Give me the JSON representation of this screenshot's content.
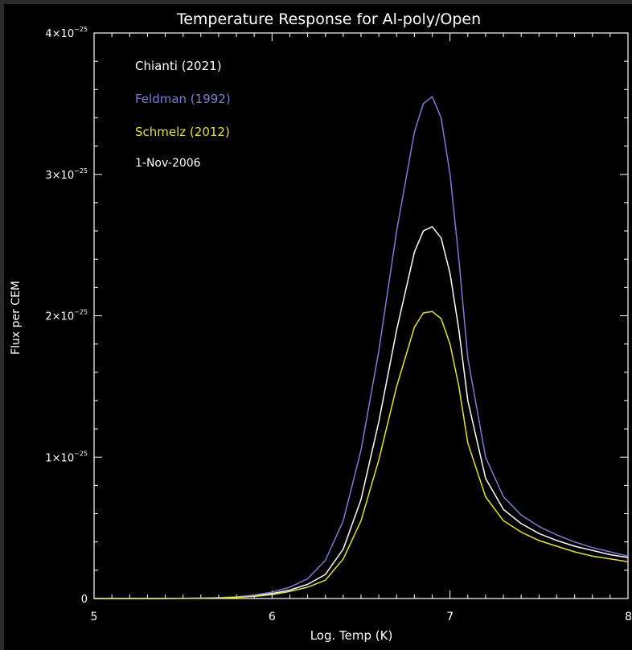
{
  "chart_data": {
    "type": "line",
    "title": "Temperature Response for Al-poly/Open",
    "xlabel": "Log. Temp (K)",
    "ylabel": "Flux per CEM",
    "xlim": [
      5,
      8
    ],
    "ylim": [
      0,
      4e-25
    ],
    "x_ticks": [
      {
        "value": 5,
        "label": "5"
      },
      {
        "value": 6,
        "label": "6"
      },
      {
        "value": 7,
        "label": "7"
      },
      {
        "value": 8,
        "label": "8"
      }
    ],
    "y_ticks": [
      {
        "value": 0,
        "label": "0",
        "exp": ""
      },
      {
        "value": 1e-25,
        "label": "1×10",
        "exp": "−25"
      },
      {
        "value": 2e-25,
        "label": "2×10",
        "exp": "−25"
      },
      {
        "value": 3e-25,
        "label": "3×10",
        "exp": "−25"
      },
      {
        "value": 4e-25,
        "label": "4×10",
        "exp": "−25"
      }
    ],
    "annotation": "1-Nov-2006",
    "legend_placement": "top-left",
    "background": "#000000",
    "axis_color": "#ffffff",
    "series": [
      {
        "name": "Chianti (2021)",
        "color": "#ffffff",
        "x": [
          5.0,
          5.1,
          5.2,
          5.3,
          5.4,
          5.5,
          5.6,
          5.7,
          5.8,
          5.9,
          6.0,
          6.1,
          6.2,
          6.3,
          6.4,
          6.5,
          6.6,
          6.7,
          6.8,
          6.85,
          6.9,
          6.95,
          7.0,
          7.05,
          7.1,
          7.2,
          7.3,
          7.4,
          7.5,
          7.6,
          7.7,
          7.8,
          7.9,
          8.0
        ],
        "values": [
          0,
          0,
          0,
          0,
          5e-29,
          1e-28,
          2e-28,
          5e-28,
          1e-27,
          2e-27,
          3.5e-27,
          6e-27,
          1e-26,
          1.7e-26,
          3.5e-26,
          7e-26,
          1.25e-25,
          1.9e-25,
          2.45e-25,
          2.6e-25,
          2.63e-25,
          2.55e-25,
          2.3e-25,
          1.9e-25,
          1.4e-25,
          8.5e-26,
          6.3e-26,
          5.3e-26,
          4.6e-26,
          4.1e-26,
          3.7e-26,
          3.4e-26,
          3.1e-26,
          2.9e-26
        ]
      },
      {
        "name": "Feldman (1992)",
        "color": "#7b7bdc",
        "x": [
          5.0,
          5.1,
          5.2,
          5.3,
          5.4,
          5.5,
          5.6,
          5.7,
          5.8,
          5.9,
          6.0,
          6.1,
          6.2,
          6.3,
          6.4,
          6.5,
          6.6,
          6.7,
          6.8,
          6.85,
          6.9,
          6.95,
          7.0,
          7.05,
          7.1,
          7.2,
          7.3,
          7.4,
          7.5,
          7.6,
          7.7,
          7.8,
          7.9,
          8.0
        ],
        "values": [
          0,
          0,
          0,
          0,
          5e-29,
          1e-28,
          3e-28,
          6e-28,
          1.2e-27,
          2.5e-27,
          4.5e-27,
          8e-27,
          1.4e-26,
          2.7e-26,
          5.5e-26,
          1.05e-25,
          1.75e-25,
          2.6e-25,
          3.3e-25,
          3.5e-25,
          3.55e-25,
          3.4e-25,
          3e-25,
          2.4e-25,
          1.7e-25,
          1e-25,
          7.2e-26,
          5.9e-26,
          5.1e-26,
          4.5e-26,
          4e-26,
          3.6e-26,
          3.3e-26,
          3e-26
        ]
      },
      {
        "name": "Schmelz (2012)",
        "color": "#e6e619",
        "x": [
          5.0,
          5.1,
          5.2,
          5.3,
          5.4,
          5.5,
          5.6,
          5.7,
          5.8,
          5.9,
          6.0,
          6.1,
          6.2,
          6.3,
          6.4,
          6.5,
          6.6,
          6.7,
          6.8,
          6.85,
          6.9,
          6.95,
          7.0,
          7.05,
          7.1,
          7.2,
          7.3,
          7.4,
          7.5,
          7.6,
          7.7,
          7.8,
          7.9,
          8.0
        ],
        "values": [
          0,
          0,
          0,
          0,
          3e-29,
          1e-28,
          2e-28,
          4e-28,
          8e-28,
          1.5e-27,
          2.8e-27,
          5e-27,
          8e-27,
          1.3e-26,
          2.8e-26,
          5.5e-26,
          9.8e-26,
          1.5e-25,
          1.92e-25,
          2.02e-25,
          2.03e-25,
          1.98e-25,
          1.8e-25,
          1.5e-25,
          1.1e-25,
          7.2e-26,
          5.5e-26,
          4.7e-26,
          4.1e-26,
          3.7e-26,
          3.3e-26,
          3e-26,
          2.8e-26,
          2.6e-26
        ]
      }
    ]
  }
}
